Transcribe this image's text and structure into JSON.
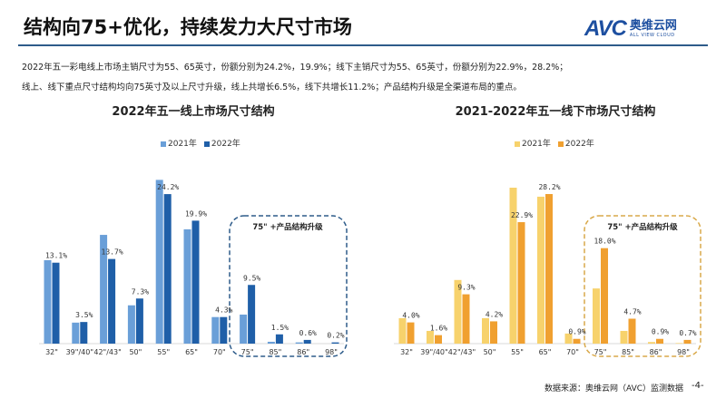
{
  "header": {
    "title": "结构向75+优化，持续发力大尺寸市场",
    "logo_text": "AVC",
    "logo_cn": "奥维云网",
    "logo_en": "ALL VIEW CLOUD"
  },
  "description": [
    "2022年五一彩电线上市场主销尺寸为55、65英寸，份额分别为24.2%，19.9%；线下主销尺寸为55、65英寸，份额分别为22.9%，28.2%；",
    "线上、线下重点尺寸结构均向75英寸及以上尺寸升级，线上共增长6.5%，线下共增长11.2%；产品结构升级是全渠道布局的重点。"
  ],
  "chart_data": [
    {
      "type": "bar",
      "title": "2022年五一线上市场尺寸结构",
      "categories": [
        "32\"",
        "39\"/40\"",
        "42\"/43\"",
        "50\"",
        "55\"",
        "65\"",
        "70\"",
        "75\"",
        "85\"",
        "86\"",
        "98\""
      ],
      "series": [
        {
          "name": "2021年",
          "color": "#6a9fd8",
          "values": [
            13.5,
            3.4,
            17.6,
            6.2,
            26.5,
            18.5,
            4.3,
            4.7,
            0.3,
            0.2,
            0.0
          ]
        },
        {
          "name": "2022年",
          "color": "#1f5fa8",
          "values": [
            13.1,
            3.5,
            13.7,
            7.3,
            24.2,
            19.9,
            4.3,
            9.5,
            1.5,
            0.6,
            0.2
          ]
        }
      ],
      "data_labels": [
        "13.1%",
        "3.5%",
        "13.7%",
        "7.3%",
        "24.2%",
        "19.9%",
        "4.3%",
        "9.5%",
        "1.5%",
        "0.6%",
        "0.2%"
      ],
      "ylim": [
        0,
        27
      ],
      "legend": "top",
      "grid": false,
      "annotation": "75\" +产品结构升级",
      "annotation_color": "#2e5c8a"
    },
    {
      "type": "bar",
      "title": "2021-2022年五一线下市场尺寸结构",
      "categories": [
        "32\"",
        "39\"/40\"",
        "42\"/43\"",
        "50\"",
        "55\"",
        "65\"",
        "70\"",
        "75\"",
        "85\"",
        "86\"",
        "98\""
      ],
      "series": [
        {
          "name": "2021年",
          "color": "#f7d26c",
          "values": [
            4.8,
            2.4,
            12.0,
            4.8,
            29.4,
            27.7,
            1.9,
            10.4,
            2.4,
            0.3,
            0.1
          ]
        },
        {
          "name": "2022年",
          "color": "#f0a030",
          "values": [
            4.0,
            1.6,
            9.3,
            4.2,
            22.9,
            28.2,
            0.9,
            18.0,
            4.7,
            0.9,
            0.7
          ]
        }
      ],
      "data_labels": [
        "4.0%",
        "1.6%",
        "9.3%",
        "4.2%",
        "22.9%",
        "28.2%",
        "0.9%",
        "18.0%",
        "4.7%",
        "0.9%",
        "0.7%"
      ],
      "ylim": [
        0,
        30
      ],
      "legend": "top",
      "grid": false,
      "annotation": "75\" +产品结构升级",
      "annotation_color": "#d9a94a"
    }
  ],
  "footer": {
    "source": "数据来源：奥维云网（AVC）监测数据",
    "page": "-4-"
  }
}
